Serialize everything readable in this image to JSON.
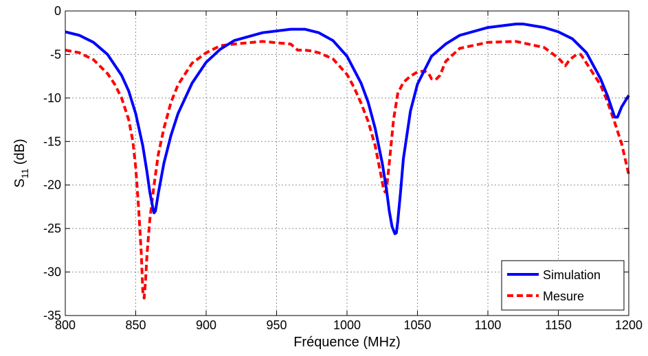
{
  "chart_data": {
    "type": "line",
    "title": "",
    "xlabel": "Fréquence (MHz)",
    "ylabel": "S11 (dB)",
    "ylabel_main": "S",
    "ylabel_sub": "11",
    "ylabel_unit": " (dB)",
    "xlim": [
      800,
      1200
    ],
    "ylim": [
      -35,
      0
    ],
    "xticks": [
      800,
      850,
      900,
      950,
      1000,
      1050,
      1100,
      1150,
      1200
    ],
    "yticks": [
      0,
      -5,
      -10,
      -15,
      -20,
      -25,
      -30,
      -35
    ],
    "grid": true,
    "legend_position": "bottom-right",
    "series": [
      {
        "name": "Simulation",
        "color": "#0000ff",
        "style": "solid",
        "x": [
          800,
          810,
          820,
          830,
          840,
          845,
          850,
          855,
          858,
          860,
          862,
          863,
          864,
          866,
          870,
          875,
          880,
          890,
          900,
          910,
          920,
          940,
          960,
          970,
          980,
          990,
          1000,
          1010,
          1015,
          1020,
          1025,
          1028,
          1030,
          1032,
          1034,
          1035,
          1036,
          1038,
          1040,
          1045,
          1050,
          1060,
          1070,
          1080,
          1100,
          1120,
          1125,
          1140,
          1150,
          1160,
          1170,
          1180,
          1185,
          1190,
          1192,
          1195,
          1200
        ],
        "y": [
          -2.4,
          -2.8,
          -3.6,
          -5.0,
          -7.4,
          -9.2,
          -11.8,
          -15.5,
          -18.5,
          -20.8,
          -22.5,
          -23.2,
          -23.0,
          -21.0,
          -17.5,
          -14.3,
          -11.8,
          -8.3,
          -5.9,
          -4.4,
          -3.4,
          -2.5,
          -2.1,
          -2.1,
          -2.5,
          -3.4,
          -5.2,
          -8.3,
          -10.5,
          -13.5,
          -17.5,
          -20.5,
          -23.0,
          -24.8,
          -25.6,
          -25.5,
          -24.2,
          -20.8,
          -17.0,
          -11.5,
          -8.4,
          -5.2,
          -3.8,
          -2.8,
          -1.9,
          -1.5,
          -1.5,
          -1.9,
          -2.4,
          -3.2,
          -4.8,
          -7.8,
          -9.8,
          -12.2,
          -12.2,
          -11.0,
          -9.7
        ]
      },
      {
        "name": "Mesure",
        "color": "#ff0000",
        "style": "dashed",
        "x": [
          800,
          810,
          820,
          830,
          835,
          840,
          845,
          848,
          850,
          852,
          854,
          855,
          856,
          857,
          858,
          860,
          863,
          866,
          870,
          875,
          880,
          890,
          900,
          910,
          920,
          940,
          960,
          965,
          970,
          975,
          980,
          990,
          1000,
          1005,
          1010,
          1015,
          1020,
          1024,
          1026,
          1027,
          1028,
          1030,
          1033,
          1036,
          1040,
          1045,
          1050,
          1055,
          1058,
          1060,
          1063,
          1066,
          1070,
          1080,
          1100,
          1120,
          1140,
          1150,
          1155,
          1158,
          1163,
          1166,
          1170,
          1180,
          1185,
          1190,
          1195,
          1200
        ],
        "y": [
          -4.5,
          -4.8,
          -5.6,
          -7.2,
          -8.4,
          -10.0,
          -12.5,
          -15.0,
          -18.0,
          -22.5,
          -28.0,
          -32.2,
          -33.0,
          -31.0,
          -28.0,
          -24.0,
          -20.0,
          -16.5,
          -13.5,
          -10.5,
          -8.5,
          -6.0,
          -4.8,
          -4.0,
          -3.8,
          -3.5,
          -3.8,
          -4.5,
          -4.5,
          -4.6,
          -4.8,
          -5.5,
          -7.3,
          -8.8,
          -10.6,
          -12.7,
          -15.5,
          -18.8,
          -20.5,
          -20.8,
          -20.5,
          -17.5,
          -12.5,
          -9.5,
          -8.2,
          -7.5,
          -7.0,
          -6.9,
          -7.2,
          -7.8,
          -7.9,
          -7.4,
          -5.8,
          -4.3,
          -3.6,
          -3.5,
          -4.2,
          -5.4,
          -6.3,
          -5.6,
          -5.0,
          -5.0,
          -6.0,
          -8.5,
          -10.5,
          -12.8,
          -15.3,
          -18.8
        ]
      }
    ]
  }
}
